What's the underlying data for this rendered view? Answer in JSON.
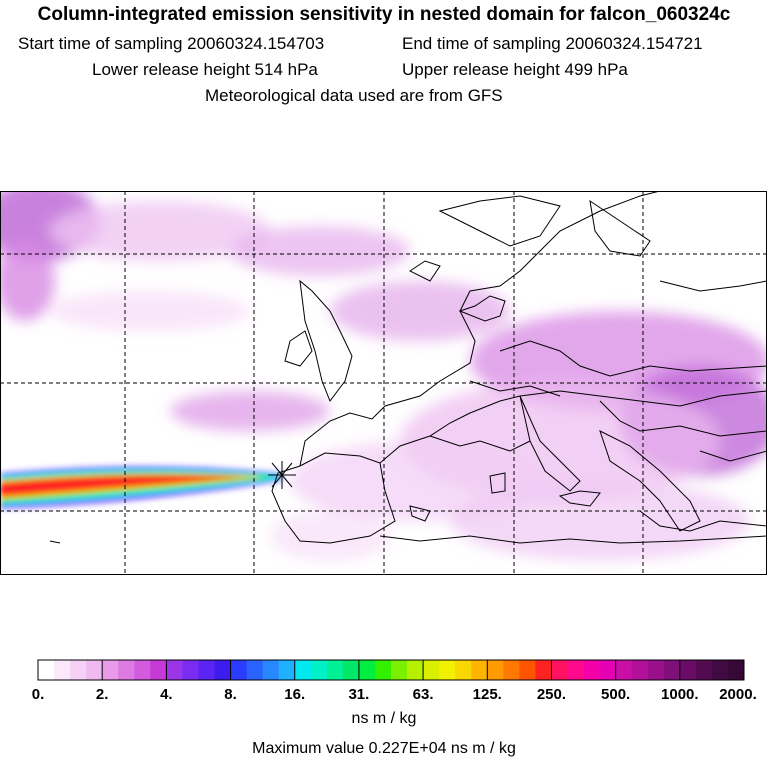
{
  "header": {
    "title": "Column-integrated emission sensitivity in nested domain for falcon_060324c",
    "start_label": "Start time of sampling 20060324.154703",
    "end_label": "End time of sampling 20060324.154721",
    "lower_label": "Lower release height  514 hPa",
    "upper_label": "Upper release height  499 hPa",
    "met_label": "Meteorological data used are from GFS"
  },
  "chart_data": {
    "type": "heatmap",
    "title": "Column-integrated emission sensitivity in nested domain for falcon_060324c",
    "colorbar": {
      "unit": "ns m / kg",
      "tick_labels": [
        "0.",
        "2.",
        "4.",
        "8.",
        "16.",
        "31.",
        "63.",
        "125.",
        "250.",
        "500.",
        "1000.",
        "2000."
      ],
      "colors": [
        "#ffffff",
        "#fbe9fb",
        "#f5d2f5",
        "#efbaf0",
        "#e79be9",
        "#de7be3",
        "#d35bde",
        "#c63ad8",
        "#9a35e8",
        "#7a2cf0",
        "#5b23f4",
        "#3d1cf0",
        "#2a3cff",
        "#2a62ff",
        "#2a88ff",
        "#1fb0ff",
        "#00e8f0",
        "#00f0c8",
        "#00f098",
        "#00e868",
        "#00ee40",
        "#33f000",
        "#7af000",
        "#b4f000",
        "#d8f000",
        "#f0f000",
        "#f8d800",
        "#ffb400",
        "#ff9a00",
        "#ff7800",
        "#ff5500",
        "#ff2222",
        "#ff1260",
        "#ff0a8c",
        "#f500a8",
        "#e600b4",
        "#c90fa5",
        "#b3109a",
        "#9a108c",
        "#7f107a",
        "#6a0c66",
        "#520a50",
        "#420a42",
        "#360836"
      ]
    },
    "max_value_label": "Maximum value  0.227E+04 ns m / kg",
    "release_marker": "release point"
  }
}
